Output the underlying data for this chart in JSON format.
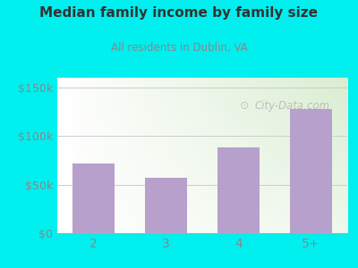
{
  "categories": [
    "2",
    "3",
    "4",
    "5+"
  ],
  "values": [
    72000,
    57000,
    88000,
    128000
  ],
  "bar_color": "#b8a0cc",
  "background_color": "#00efef",
  "title": "Median family income by family size",
  "subtitle": "All residents in Dublin, VA",
  "title_color": "#333333",
  "subtitle_color": "#888888",
  "yticks": [
    0,
    50000,
    100000,
    150000
  ],
  "ytick_labels": [
    "$0",
    "$50k",
    "$100k",
    "$150k"
  ],
  "ylim": [
    0,
    160000
  ],
  "watermark": "① City-Data.com",
  "tick_color": "#888888",
  "grid_color": "#cccccc",
  "plot_bg_left": "#ffffff",
  "plot_bg_right": "#d8ecd0"
}
